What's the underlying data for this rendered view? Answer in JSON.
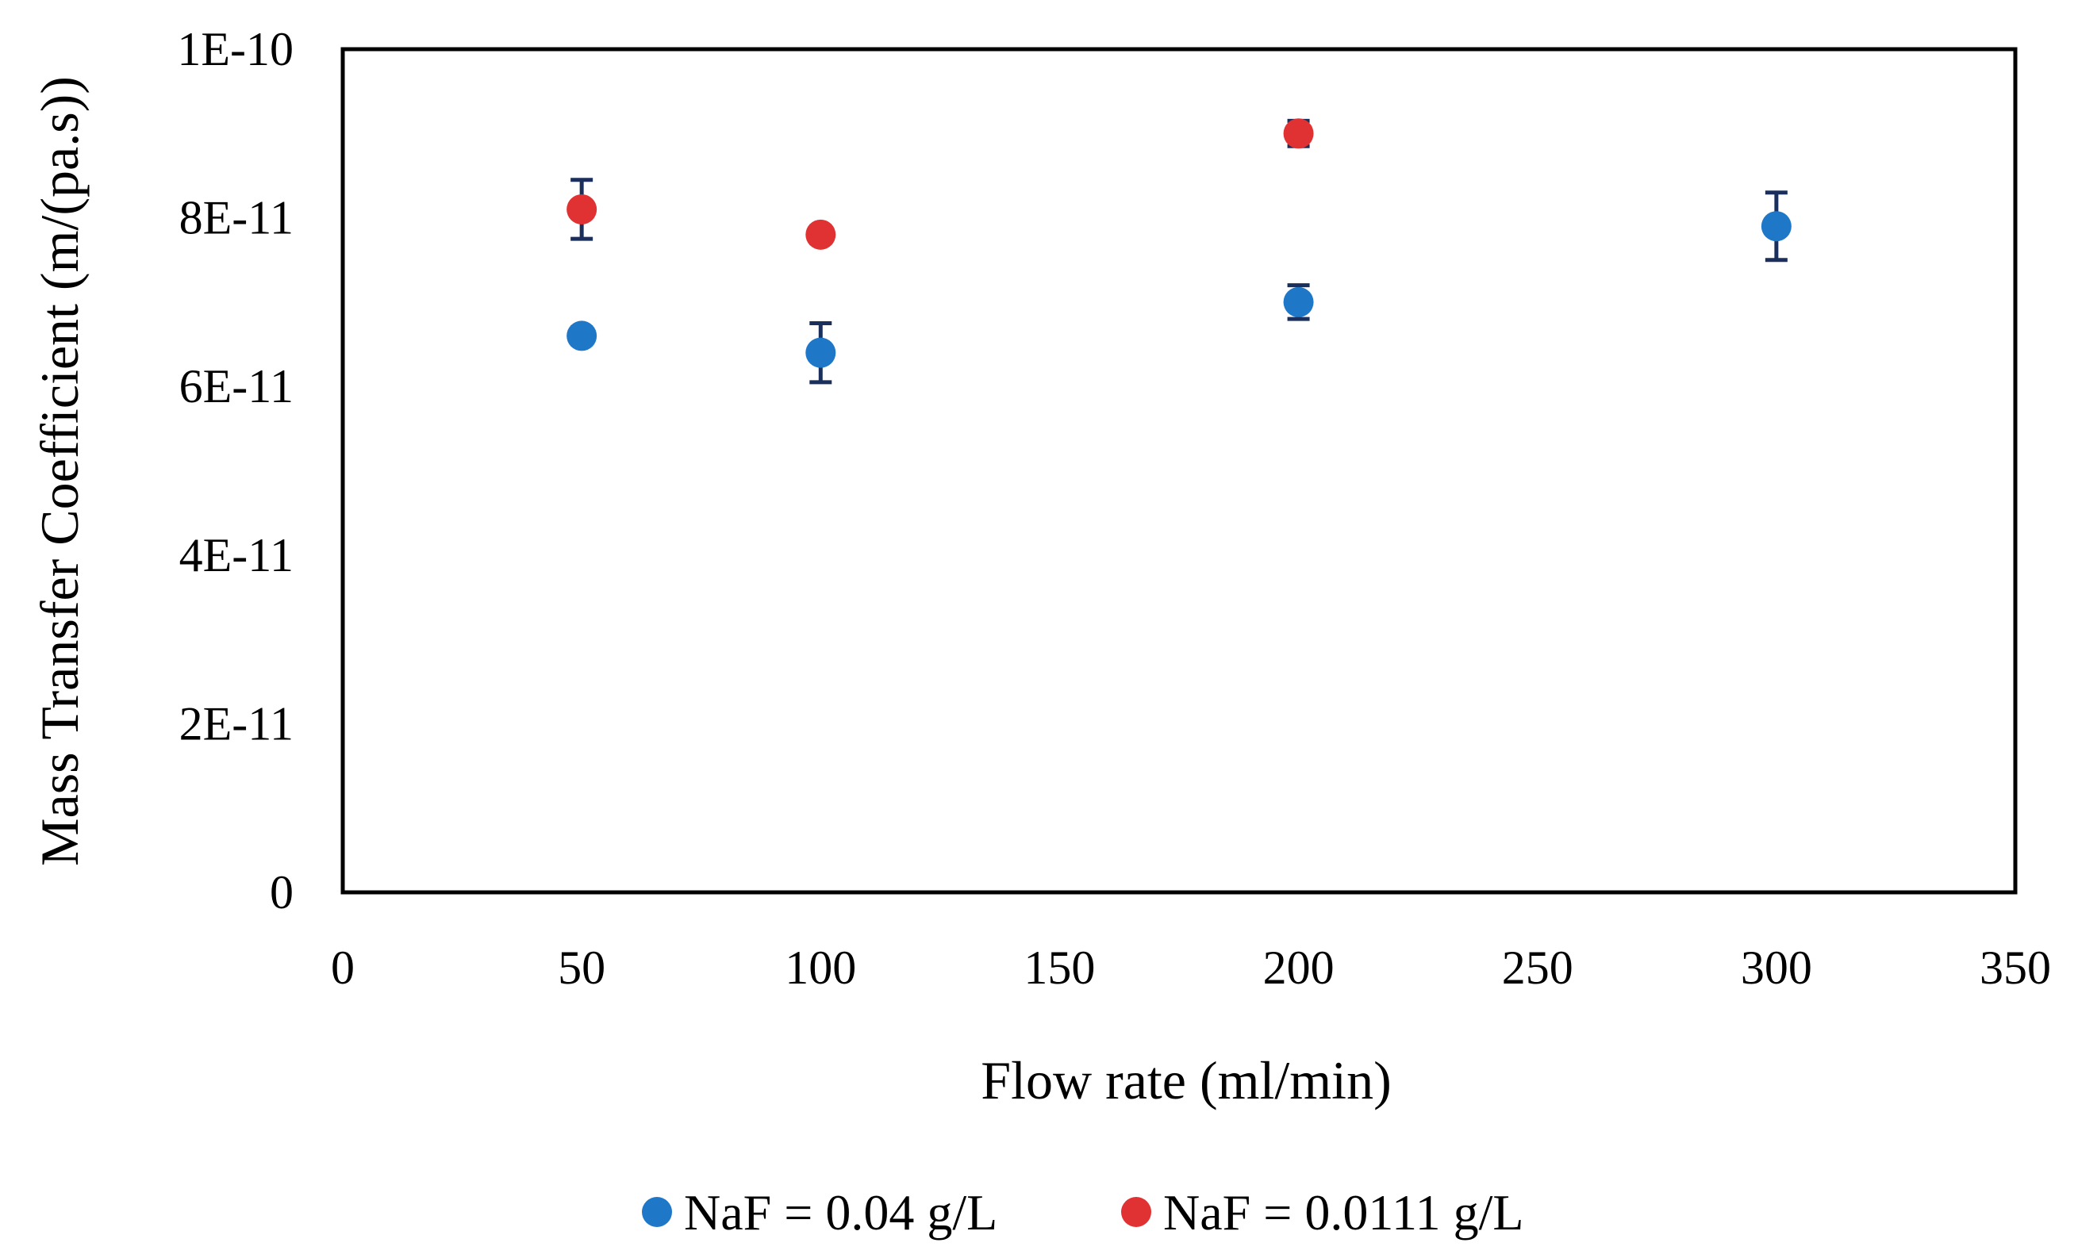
{
  "chart_data": {
    "type": "scatter",
    "title": "",
    "xlabel": "Flow rate (ml/min)",
    "ylabel": "Mass Transfer Coefficient (m/(pa.s))",
    "xlim": [
      0,
      350
    ],
    "ylim": [
      0,
      1e-10
    ],
    "x_ticks": [
      0,
      50,
      100,
      150,
      200,
      250,
      300,
      350
    ],
    "x_tick_labels": [
      "0",
      "50",
      "100",
      "150",
      "200",
      "250",
      "300",
      "350"
    ],
    "y_ticks": [
      0,
      2e-11,
      4e-11,
      6e-11,
      8e-11,
      1e-10
    ],
    "y_tick_labels": [
      "0",
      "2E-11",
      "4E-11",
      "6E-11",
      "8E-11",
      "1E-10"
    ],
    "grid": false,
    "legend_position": "bottom",
    "series": [
      {
        "name": "NaF = 0.04 g/L",
        "color": "#1f77c8",
        "x": [
          50,
          100,
          200,
          300
        ],
        "y": [
          6.6e-11,
          6.4e-11,
          7e-11,
          7.9e-11
        ],
        "error": [
          1e-12,
          3.5e-12,
          2e-12,
          4e-12
        ]
      },
      {
        "name": "NaF = 0.0111 g/L",
        "color": "#e03232",
        "x": [
          50,
          100,
          200
        ],
        "y": [
          8.1e-11,
          7.8e-11,
          9e-11
        ],
        "error": [
          3.5e-12,
          1e-12,
          1.5e-12
        ]
      }
    ],
    "error_bar_color": "#1a2f5c"
  }
}
